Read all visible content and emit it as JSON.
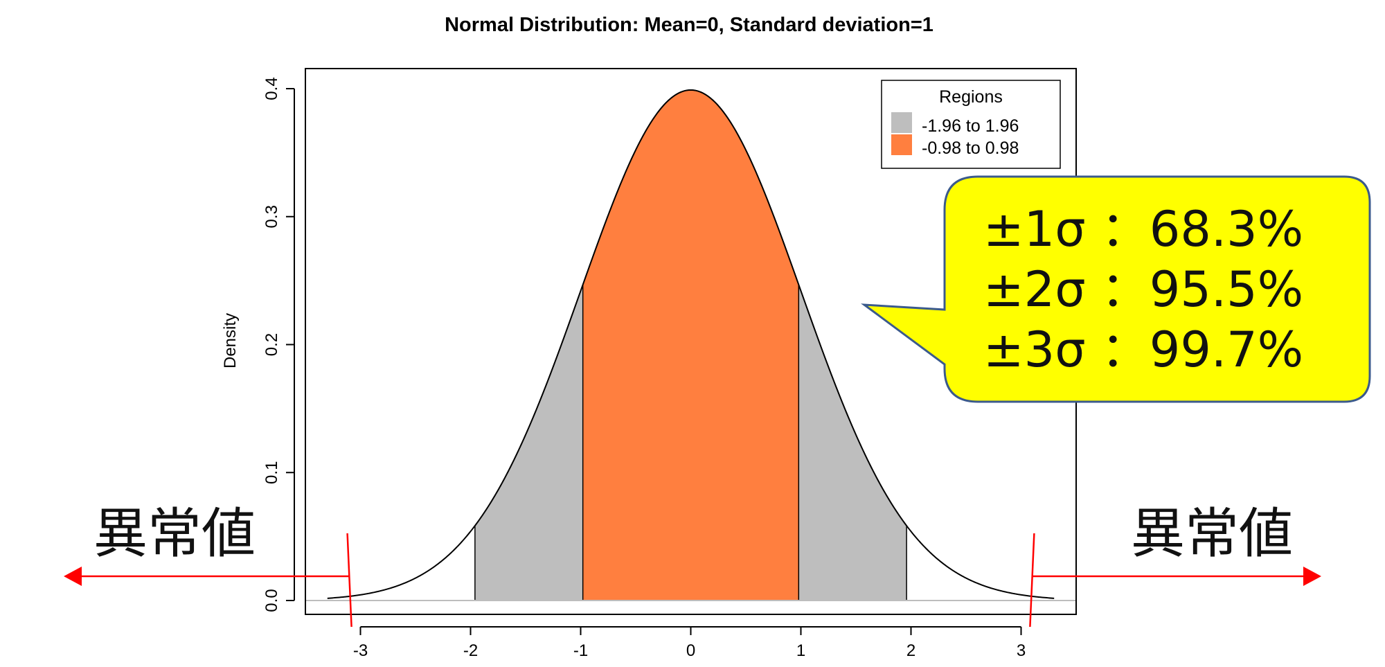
{
  "chart_data": {
    "type": "area",
    "title": "Normal Distribution:  Mean=0, Standard deviation=1",
    "xlabel": "",
    "ylabel": "Density",
    "mean": 0,
    "sd": 1,
    "xlim": [
      -3.5,
      3.5
    ],
    "ylim": [
      0,
      0.4
    ],
    "curve_range": [
      -3.3,
      3.3
    ],
    "x_ticks": [
      -3,
      -2,
      -1,
      0,
      1,
      2,
      3
    ],
    "x_tick_labels": [
      "-3",
      "-2",
      "-1",
      "0",
      "1",
      "2",
      "3"
    ],
    "y_ticks": [
      0,
      0.1,
      0.2,
      0.3,
      0.4
    ],
    "y_tick_labels": [
      "0.0",
      "0.1",
      "0.2",
      "0.3",
      "0.4"
    ],
    "regions": [
      {
        "label": "-1.96 to 1.96",
        "from": -1.96,
        "to": 1.96,
        "color": "#bebebe"
      },
      {
        "label": "-0.98 to 0.98",
        "from": -0.98,
        "to": 0.98,
        "color": "#ff7f3f"
      }
    ],
    "legend": {
      "title": "Regions",
      "position": "top-right"
    }
  },
  "callout": {
    "lines": [
      "±1σ ：68.3%",
      "±2σ ：95.5%",
      "±3σ ：99.7%"
    ],
    "fill": "#ffff00",
    "border": "#3b5a8c"
  },
  "outliers": {
    "left_label": "異常値",
    "right_label": "異常値",
    "left_cut": -3.1,
    "right_cut": 3.1,
    "color": "#ff0000"
  }
}
